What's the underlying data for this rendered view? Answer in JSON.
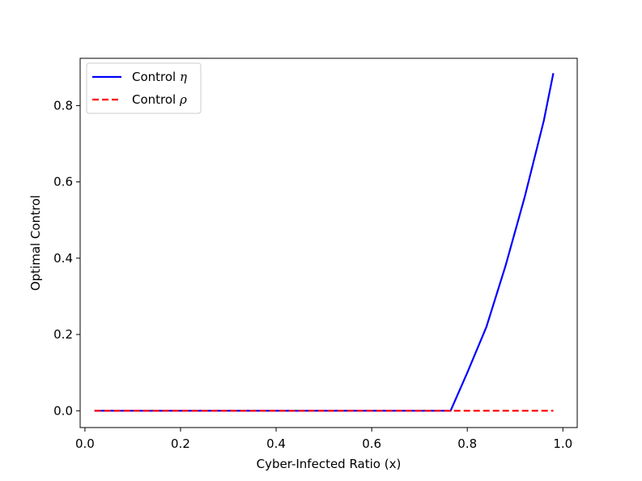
{
  "chart_data": {
    "type": "line",
    "title": "",
    "xlabel": "Cyber-Infected Ratio (x)",
    "ylabel": "Optimal Control",
    "xlim": [
      -0.01,
      1.03
    ],
    "ylim": [
      -0.044,
      0.924
    ],
    "xticks": [
      0.0,
      0.2,
      0.4,
      0.6,
      0.8,
      1.0
    ],
    "xtick_labels": [
      "0.0",
      "0.2",
      "0.4",
      "0.6",
      "0.8",
      "1.0"
    ],
    "yticks": [
      0.0,
      0.2,
      0.4,
      0.6,
      0.8
    ],
    "ytick_labels": [
      "0.0",
      "0.2",
      "0.4",
      "0.6",
      "0.8"
    ],
    "grid": false,
    "legend_position": "upper-left",
    "series": [
      {
        "name_prefix": "Control ",
        "name_symbol": "η",
        "color": "#0000ff",
        "style": "solid",
        "x": [
          0.02,
          0.1,
          0.2,
          0.3,
          0.4,
          0.5,
          0.6,
          0.7,
          0.765,
          0.8,
          0.84,
          0.88,
          0.92,
          0.96,
          0.98
        ],
        "y": [
          0.0,
          0.0,
          0.0,
          0.0,
          0.0,
          0.0,
          0.0,
          0.0,
          0.0,
          0.1,
          0.22,
          0.38,
          0.56,
          0.76,
          0.885
        ]
      },
      {
        "name_prefix": "Control ",
        "name_symbol": "ρ",
        "color": "#ff0000",
        "style": "dashed",
        "x": [
          0.02,
          0.98
        ],
        "y": [
          0.0,
          0.0
        ]
      }
    ]
  }
}
